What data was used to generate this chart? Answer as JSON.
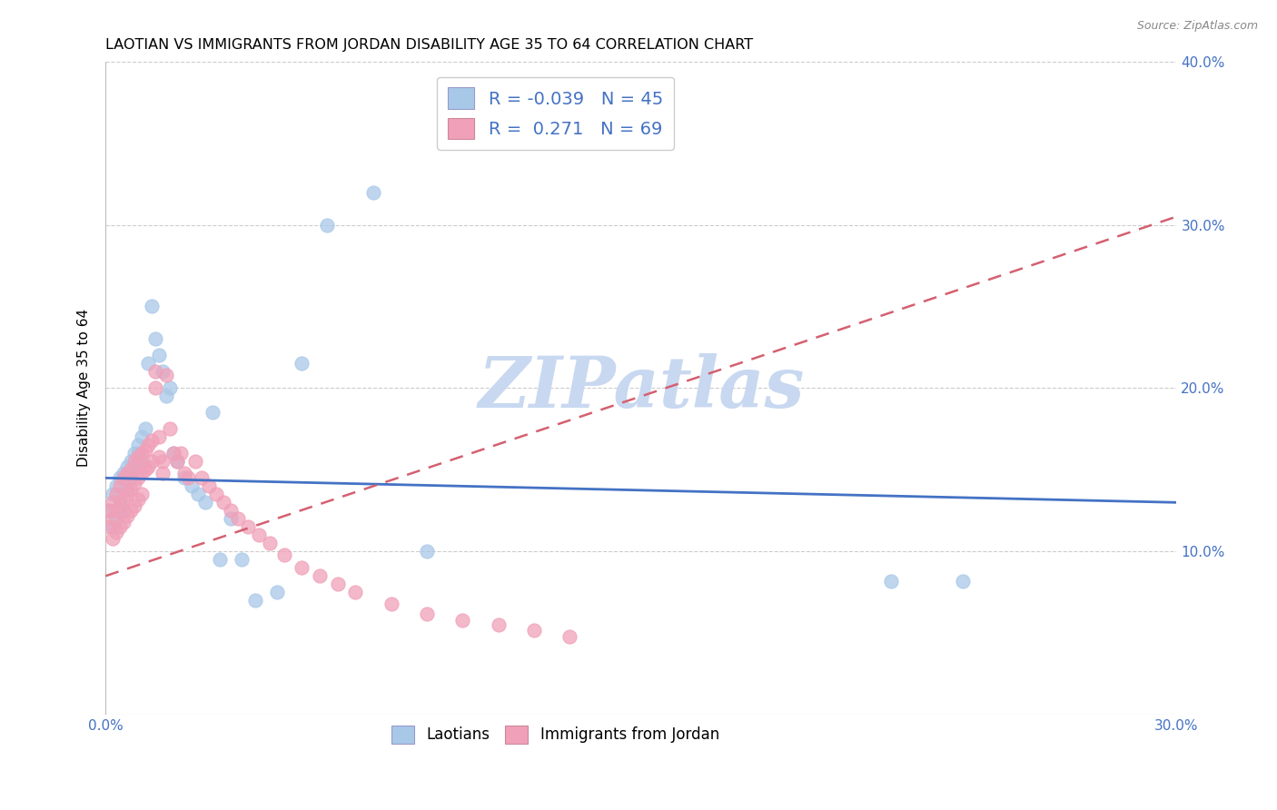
{
  "title": "LAOTIAN VS IMMIGRANTS FROM JORDAN DISABILITY AGE 35 TO 64 CORRELATION CHART",
  "source": "Source: ZipAtlas.com",
  "ylabel": "Disability Age 35 to 64",
  "xlim": [
    0.0,
    0.3
  ],
  "ylim": [
    0.0,
    0.4
  ],
  "xticks": [
    0.0,
    0.05,
    0.1,
    0.15,
    0.2,
    0.25,
    0.3
  ],
  "yticks": [
    0.0,
    0.1,
    0.2,
    0.3,
    0.4
  ],
  "legend_labels": [
    "Laotians",
    "Immigrants from Jordan"
  ],
  "r_laotian": -0.039,
  "n_laotian": 45,
  "r_jordan": 0.271,
  "n_jordan": 69,
  "blue_scatter_color": "#A8C8E8",
  "pink_scatter_color": "#F0A0B8",
  "blue_line_color": "#4472C4",
  "pink_line_color": "#D46070",
  "watermark": "ZIPatlas",
  "watermark_color": "#C8D8F0",
  "blue_line_x": [
    0.0,
    0.3
  ],
  "blue_line_y": [
    0.145,
    0.13
  ],
  "pink_line_x": [
    0.0,
    0.3
  ],
  "pink_line_y": [
    0.085,
    0.305
  ],
  "laotian_x": [
    0.001,
    0.002,
    0.002,
    0.003,
    0.003,
    0.004,
    0.004,
    0.005,
    0.005,
    0.006,
    0.006,
    0.007,
    0.007,
    0.008,
    0.008,
    0.009,
    0.009,
    0.01,
    0.01,
    0.011,
    0.012,
    0.013,
    0.014,
    0.015,
    0.016,
    0.017,
    0.018,
    0.019,
    0.02,
    0.022,
    0.024,
    0.026,
    0.028,
    0.03,
    0.032,
    0.035,
    0.038,
    0.042,
    0.048,
    0.055,
    0.062,
    0.075,
    0.09,
    0.22,
    0.24
  ],
  "laotian_y": [
    0.125,
    0.135,
    0.115,
    0.14,
    0.12,
    0.145,
    0.13,
    0.148,
    0.125,
    0.152,
    0.138,
    0.155,
    0.145,
    0.16,
    0.15,
    0.165,
    0.16,
    0.17,
    0.155,
    0.175,
    0.215,
    0.25,
    0.23,
    0.22,
    0.21,
    0.195,
    0.2,
    0.16,
    0.155,
    0.145,
    0.14,
    0.135,
    0.13,
    0.185,
    0.095,
    0.12,
    0.095,
    0.07,
    0.075,
    0.215,
    0.3,
    0.32,
    0.1,
    0.082,
    0.082
  ],
  "jordan_x": [
    0.001,
    0.001,
    0.002,
    0.002,
    0.002,
    0.003,
    0.003,
    0.003,
    0.004,
    0.004,
    0.004,
    0.005,
    0.005,
    0.005,
    0.006,
    0.006,
    0.006,
    0.007,
    0.007,
    0.007,
    0.008,
    0.008,
    0.008,
    0.009,
    0.009,
    0.009,
    0.01,
    0.01,
    0.01,
    0.011,
    0.011,
    0.012,
    0.012,
    0.013,
    0.013,
    0.014,
    0.014,
    0.015,
    0.015,
    0.016,
    0.016,
    0.017,
    0.018,
    0.019,
    0.02,
    0.021,
    0.022,
    0.023,
    0.025,
    0.027,
    0.029,
    0.031,
    0.033,
    0.035,
    0.037,
    0.04,
    0.043,
    0.046,
    0.05,
    0.055,
    0.06,
    0.065,
    0.07,
    0.08,
    0.09,
    0.1,
    0.11,
    0.12,
    0.13
  ],
  "jordan_y": [
    0.125,
    0.115,
    0.13,
    0.12,
    0.108,
    0.135,
    0.125,
    0.112,
    0.14,
    0.128,
    0.115,
    0.145,
    0.132,
    0.118,
    0.148,
    0.135,
    0.122,
    0.15,
    0.138,
    0.125,
    0.155,
    0.142,
    0.128,
    0.158,
    0.145,
    0.132,
    0.16,
    0.148,
    0.135,
    0.162,
    0.15,
    0.165,
    0.152,
    0.168,
    0.155,
    0.21,
    0.2,
    0.17,
    0.158,
    0.155,
    0.148,
    0.208,
    0.175,
    0.16,
    0.155,
    0.16,
    0.148,
    0.145,
    0.155,
    0.145,
    0.14,
    0.135,
    0.13,
    0.125,
    0.12,
    0.115,
    0.11,
    0.105,
    0.098,
    0.09,
    0.085,
    0.08,
    0.075,
    0.068,
    0.062,
    0.058,
    0.055,
    0.052,
    0.048
  ]
}
